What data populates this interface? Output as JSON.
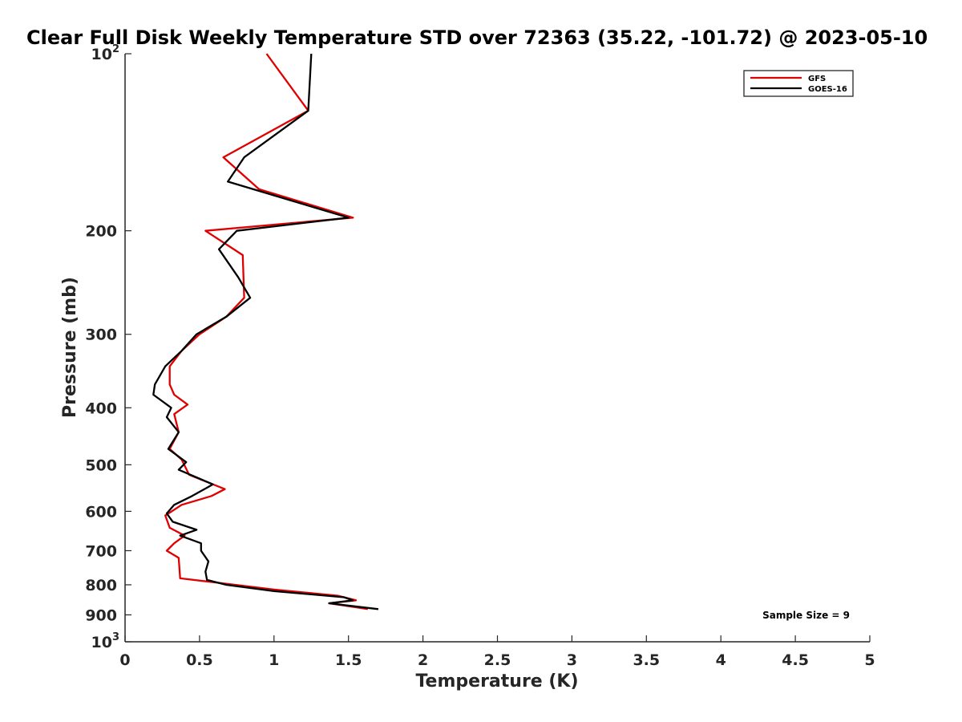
{
  "chart_data": {
    "type": "line",
    "title": "Clear Full Disk Weekly Temperature STD over 72363 (35.22, -101.72) @ 2023-05-10",
    "xlabel": "Temperature (K)",
    "ylabel": "Pressure (mb)",
    "xlim": [
      0,
      5
    ],
    "ylim": [
      100,
      1000
    ],
    "y_scale": "log",
    "y_reversed": true,
    "x_ticks": [
      "0",
      "0.5",
      "1",
      "1.5",
      "2",
      "2.5",
      "3",
      "3.5",
      "4",
      "4.5",
      "5"
    ],
    "y_tick_values": [
      100,
      200,
      300,
      400,
      500,
      600,
      700,
      800,
      900,
      1000
    ],
    "y_tick_labels": [
      "10^2",
      "200",
      "300",
      "400",
      "500",
      "600",
      "700",
      "800",
      "900",
      "10^3"
    ],
    "legend_position": "top-right",
    "grid": false,
    "series": [
      {
        "name": "GFS",
        "color": "#e00000",
        "points": [
          [
            0.95,
            100
          ],
          [
            1.23,
            125
          ],
          [
            0.66,
            150
          ],
          [
            0.9,
            170
          ],
          [
            1.53,
            190
          ],
          [
            0.54,
            200
          ],
          [
            0.79,
            220
          ],
          [
            0.8,
            260
          ],
          [
            0.68,
            280
          ],
          [
            0.5,
            300
          ],
          [
            0.38,
            320
          ],
          [
            0.3,
            340
          ],
          [
            0.3,
            365
          ],
          [
            0.33,
            380
          ],
          [
            0.42,
            395
          ],
          [
            0.33,
            410
          ],
          [
            0.36,
            440
          ],
          [
            0.3,
            470
          ],
          [
            0.38,
            490
          ],
          [
            0.43,
            520
          ],
          [
            0.67,
            550
          ],
          [
            0.58,
            565
          ],
          [
            0.38,
            585
          ],
          [
            0.27,
            610
          ],
          [
            0.3,
            640
          ],
          [
            0.4,
            660
          ],
          [
            0.33,
            680
          ],
          [
            0.28,
            700
          ],
          [
            0.36,
            720
          ],
          [
            0.37,
            780
          ],
          [
            0.65,
            795
          ],
          [
            1.0,
            815
          ],
          [
            1.43,
            835
          ],
          [
            1.55,
            850
          ],
          [
            1.37,
            860
          ],
          [
            1.63,
            880
          ]
        ]
      },
      {
        "name": "GOES-16",
        "color": "#000000",
        "points": [
          [
            1.25,
            100
          ],
          [
            1.23,
            125
          ],
          [
            0.8,
            150
          ],
          [
            0.69,
            165
          ],
          [
            1.5,
            190
          ],
          [
            0.75,
            200
          ],
          [
            0.63,
            215
          ],
          [
            0.76,
            240
          ],
          [
            0.84,
            260
          ],
          [
            0.68,
            280
          ],
          [
            0.48,
            300
          ],
          [
            0.38,
            320
          ],
          [
            0.27,
            340
          ],
          [
            0.2,
            365
          ],
          [
            0.19,
            380
          ],
          [
            0.31,
            400
          ],
          [
            0.28,
            415
          ],
          [
            0.36,
            440
          ],
          [
            0.29,
            470
          ],
          [
            0.41,
            495
          ],
          [
            0.36,
            510
          ],
          [
            0.59,
            540
          ],
          [
            0.45,
            565
          ],
          [
            0.33,
            585
          ],
          [
            0.28,
            605
          ],
          [
            0.32,
            625
          ],
          [
            0.48,
            645
          ],
          [
            0.37,
            660
          ],
          [
            0.51,
            680
          ],
          [
            0.51,
            700
          ],
          [
            0.56,
            730
          ],
          [
            0.54,
            760
          ],
          [
            0.55,
            785
          ],
          [
            0.68,
            800
          ],
          [
            1.0,
            820
          ],
          [
            1.47,
            840
          ],
          [
            1.53,
            850
          ],
          [
            1.37,
            860
          ],
          [
            1.7,
            880
          ]
        ]
      }
    ],
    "annotations": [
      "Sample Size = 9"
    ]
  }
}
